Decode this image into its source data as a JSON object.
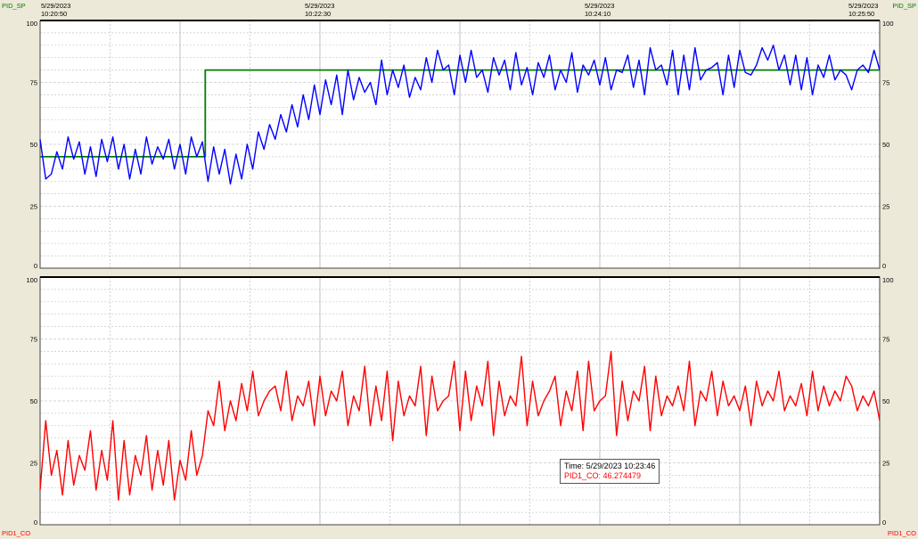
{
  "window": {
    "corner_top_left": "PID_SP",
    "corner_top_right": "PID_SP",
    "corner_bottom_left": "PID1_CO",
    "corner_bottom_right": "PID1_CO"
  },
  "colors": {
    "background": "#ece9d8",
    "plot_bg": "#ffffff",
    "grid": "#c8c8c8",
    "sp_line": "#008000",
    "pv_line": "#0000ff",
    "co_line": "#ff0000"
  },
  "time_axis": [
    {
      "date": "5/29/2023",
      "time": "10:20:50"
    },
    {
      "date": "5/29/2023",
      "time": "10:22:30"
    },
    {
      "date": "5/29/2023",
      "time": "10:24:10"
    },
    {
      "date": "5/29/2023",
      "time": "10:25:50"
    }
  ],
  "tooltip": {
    "time_text": "Time: 5/29/2023 10:23:46",
    "value_text": "PID1_CO: 46.274479"
  },
  "chart_data": [
    {
      "type": "line",
      "panel": "top",
      "ylim": [
        0,
        100
      ],
      "y_ticks": [
        "100",
        "75",
        "50",
        "25",
        "0"
      ],
      "x_range_seconds": [
        0,
        300
      ],
      "grid": true,
      "series": [
        {
          "name": "PID_SP",
          "color": "#008000",
          "x": [
            0,
            59,
            59,
            300
          ],
          "y": [
            45,
            45,
            80,
            80
          ]
        },
        {
          "name": "",
          "color": "#0000ff",
          "x": [
            0,
            2,
            4,
            6,
            8,
            10,
            12,
            14,
            16,
            18,
            20,
            22,
            24,
            26,
            28,
            30,
            32,
            34,
            36,
            38,
            40,
            42,
            44,
            46,
            48,
            50,
            52,
            54,
            56,
            58,
            60,
            62,
            64,
            66,
            68,
            70,
            72,
            74,
            76,
            78,
            80,
            82,
            84,
            86,
            88,
            90,
            92,
            94,
            96,
            98,
            100,
            102,
            104,
            106,
            108,
            110,
            112,
            114,
            116,
            118,
            120,
            122,
            124,
            126,
            128,
            130,
            132,
            134,
            136,
            138,
            140,
            142,
            144,
            146,
            148,
            150,
            152,
            154,
            156,
            158,
            160,
            162,
            164,
            166,
            168,
            170,
            172,
            174,
            176,
            178,
            180,
            182,
            184,
            186,
            188,
            190,
            192,
            194,
            196,
            198,
            200,
            202,
            204,
            206,
            208,
            210,
            212,
            214,
            216,
            218,
            220,
            222,
            224,
            226,
            228,
            230,
            232,
            234,
            236,
            238,
            240,
            242,
            244,
            246,
            248,
            250,
            252,
            254,
            256,
            258,
            260,
            262,
            264,
            266,
            268,
            270,
            272,
            274,
            276,
            278,
            280,
            282,
            284,
            286,
            288,
            290,
            292,
            294,
            296,
            298,
            300
          ],
          "y": [
            52,
            36,
            38,
            47,
            40,
            53,
            44,
            51,
            38,
            49,
            37,
            52,
            43,
            53,
            40,
            50,
            36,
            48,
            38,
            53,
            42,
            49,
            44,
            52,
            40,
            50,
            38,
            53,
            45,
            51,
            35,
            49,
            38,
            48,
            34,
            46,
            36,
            50,
            40,
            55,
            48,
            58,
            52,
            62,
            55,
            66,
            57,
            70,
            60,
            74,
            62,
            76,
            66,
            78,
            62,
            80,
            68,
            77,
            71,
            75,
            66,
            84,
            70,
            80,
            73,
            82,
            69,
            77,
            72,
            85,
            75,
            88,
            80,
            82,
            70,
            86,
            75,
            88,
            77,
            80,
            71,
            85,
            78,
            84,
            72,
            87,
            74,
            81,
            70,
            83,
            77,
            86,
            72,
            80,
            75,
            87,
            71,
            82,
            78,
            84,
            74,
            85,
            72,
            80,
            79,
            86,
            73,
            84,
            70,
            89,
            80,
            82,
            74,
            88,
            70,
            86,
            72,
            89,
            76,
            80,
            81,
            83,
            70,
            86,
            73,
            88,
            79,
            78,
            82,
            89,
            84,
            90,
            80,
            86,
            74,
            86,
            72,
            85,
            70,
            82,
            77,
            86,
            76,
            80,
            78,
            72,
            80,
            82,
            79,
            88,
            80
          ]
        }
      ]
    },
    {
      "type": "line",
      "panel": "bottom",
      "ylim": [
        0,
        100
      ],
      "y_ticks": [
        "100",
        "75",
        "50",
        "25",
        "0"
      ],
      "x_range_seconds": [
        0,
        300
      ],
      "grid": true,
      "series": [
        {
          "name": "PID1_CO",
          "color": "#ff0000",
          "x": [
            0,
            2,
            4,
            6,
            8,
            10,
            12,
            14,
            16,
            18,
            20,
            22,
            24,
            26,
            28,
            30,
            32,
            34,
            36,
            38,
            40,
            42,
            44,
            46,
            48,
            50,
            52,
            54,
            56,
            58,
            60,
            62,
            64,
            66,
            68,
            70,
            72,
            74,
            76,
            78,
            80,
            82,
            84,
            86,
            88,
            90,
            92,
            94,
            96,
            98,
            100,
            102,
            104,
            106,
            108,
            110,
            112,
            114,
            116,
            118,
            120,
            122,
            124,
            126,
            128,
            130,
            132,
            134,
            136,
            138,
            140,
            142,
            144,
            146,
            148,
            150,
            152,
            154,
            156,
            158,
            160,
            162,
            164,
            166,
            168,
            170,
            172,
            174,
            176,
            178,
            180,
            182,
            184,
            186,
            188,
            190,
            192,
            194,
            196,
            198,
            200,
            202,
            204,
            206,
            208,
            210,
            212,
            214,
            216,
            218,
            220,
            222,
            224,
            226,
            228,
            230,
            232,
            234,
            236,
            238,
            240,
            242,
            244,
            246,
            248,
            250,
            252,
            254,
            256,
            258,
            260,
            262,
            264,
            266,
            268,
            270,
            272,
            274,
            276,
            278,
            280,
            282,
            284,
            286,
            288,
            290,
            292,
            294,
            296,
            298,
            300
          ],
          "y": [
            14,
            42,
            20,
            30,
            12,
            34,
            16,
            28,
            22,
            38,
            14,
            30,
            18,
            42,
            10,
            34,
            12,
            28,
            20,
            36,
            14,
            30,
            16,
            34,
            10,
            26,
            18,
            38,
            20,
            28,
            46,
            40,
            58,
            38,
            50,
            42,
            57,
            46,
            62,
            44,
            50,
            54,
            56,
            46,
            62,
            42,
            52,
            48,
            58,
            40,
            60,
            44,
            54,
            50,
            62,
            40,
            52,
            46,
            64,
            40,
            56,
            42,
            62,
            34,
            58,
            44,
            52,
            48,
            64,
            36,
            60,
            46,
            50,
            52,
            66,
            38,
            62,
            42,
            56,
            48,
            66,
            36,
            58,
            44,
            52,
            48,
            68,
            40,
            58,
            44,
            50,
            54,
            60,
            40,
            54,
            46,
            62,
            38,
            66,
            46,
            50,
            52,
            70,
            36,
            58,
            42,
            54,
            50,
            64,
            38,
            60,
            44,
            52,
            48,
            56,
            46,
            66,
            40,
            54,
            50,
            62,
            44,
            58,
            48,
            52,
            46,
            56,
            40,
            58,
            48,
            54,
            50,
            62,
            46,
            52,
            48,
            57,
            44,
            62,
            46,
            56,
            48,
            54,
            50,
            60,
            56,
            46,
            52,
            48,
            54,
            42
          ]
        }
      ]
    }
  ]
}
